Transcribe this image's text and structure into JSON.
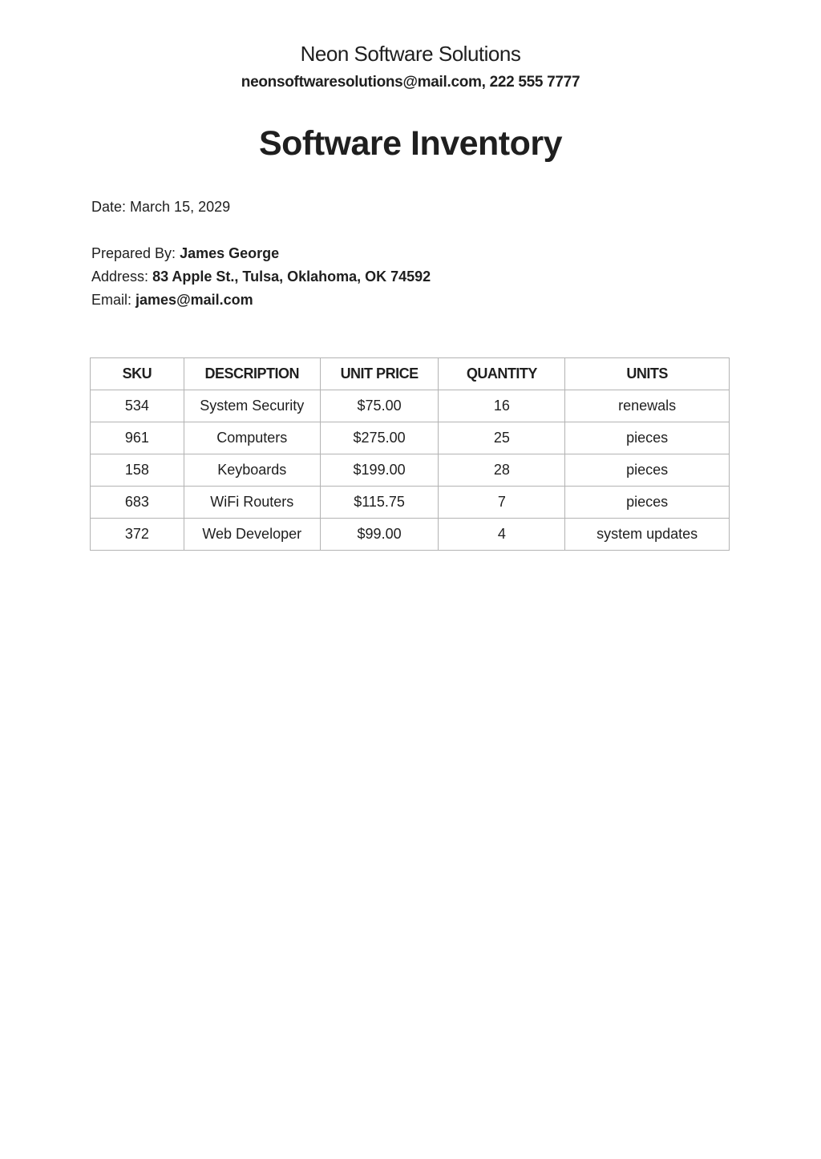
{
  "header": {
    "company": "Neon Software Solutions",
    "contact": "neonsoftwaresolutions@mail.com, 222 555 7777",
    "title": "Software Inventory"
  },
  "info": {
    "date_label": "Date:",
    "date": "March 15, 2029",
    "prepared_label": "Prepared By:",
    "prepared": "James George",
    "address_label": "Address:",
    "address": "83 Apple St., Tulsa, Oklahoma, OK 74592",
    "email_label": "Email:",
    "email": "james@mail.com"
  },
  "table": {
    "headers": [
      "SKU",
      "DESCRIPTION",
      "UNIT PRICE",
      "QUANTITY",
      "UNITS"
    ],
    "rows": [
      [
        "534",
        "System Security",
        "$75.00",
        "16",
        "renewals"
      ],
      [
        "961",
        "Computers",
        "$275.00",
        "25",
        "pieces"
      ],
      [
        "158",
        "Keyboards",
        "$199.00",
        "28",
        "pieces"
      ],
      [
        "683",
        "WiFi Routers",
        "$115.75",
        "7",
        "pieces"
      ],
      [
        "372",
        "Web Developer",
        "$99.00",
        "4",
        "system updates"
      ]
    ]
  }
}
